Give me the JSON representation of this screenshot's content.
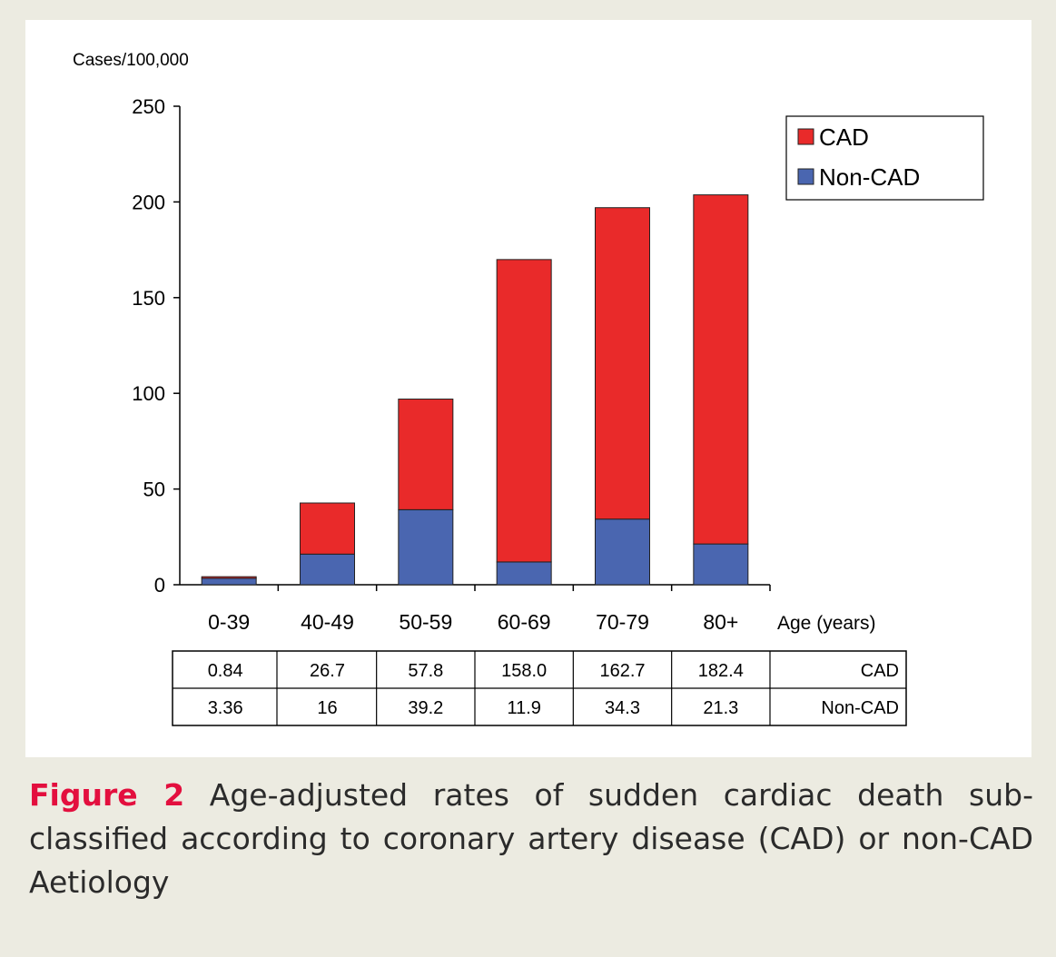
{
  "chart_data": {
    "type": "bar",
    "stacked": true,
    "ylabel": "Cases/100,000",
    "xlabel": "Age (years)",
    "categories": [
      "0-39",
      "40-49",
      "50-59",
      "60-69",
      "70-79",
      "80+"
    ],
    "ylim": [
      0,
      250
    ],
    "yticks": [
      0,
      50,
      100,
      150,
      200,
      250
    ],
    "series": [
      {
        "name": "Non-CAD",
        "color": "#4a66b0",
        "values": [
          3.36,
          16,
          39.2,
          11.9,
          34.3,
          21.3
        ]
      },
      {
        "name": "CAD",
        "color": "#e92a2a",
        "values": [
          0.84,
          26.7,
          57.8,
          158.0,
          162.7,
          182.4
        ]
      }
    ],
    "legend": {
      "position": "top-right",
      "order": [
        "CAD",
        "Non-CAD"
      ]
    },
    "grid": false,
    "table": {
      "rows": [
        {
          "label": "CAD",
          "values": [
            "0.84",
            "26.7",
            "57.8",
            "158.0",
            "162.7",
            "182.4"
          ]
        },
        {
          "label": "Non-CAD",
          "values": [
            "3.36",
            "16",
            "39.2",
            "11.9",
            "34.3",
            "21.3"
          ]
        }
      ]
    }
  },
  "caption": {
    "label": "Figure 2",
    "text": "Age-adjusted rates of sudden cardiac death sub-classified according to coronary artery disease (CAD) or non-CAD Aetiology"
  }
}
